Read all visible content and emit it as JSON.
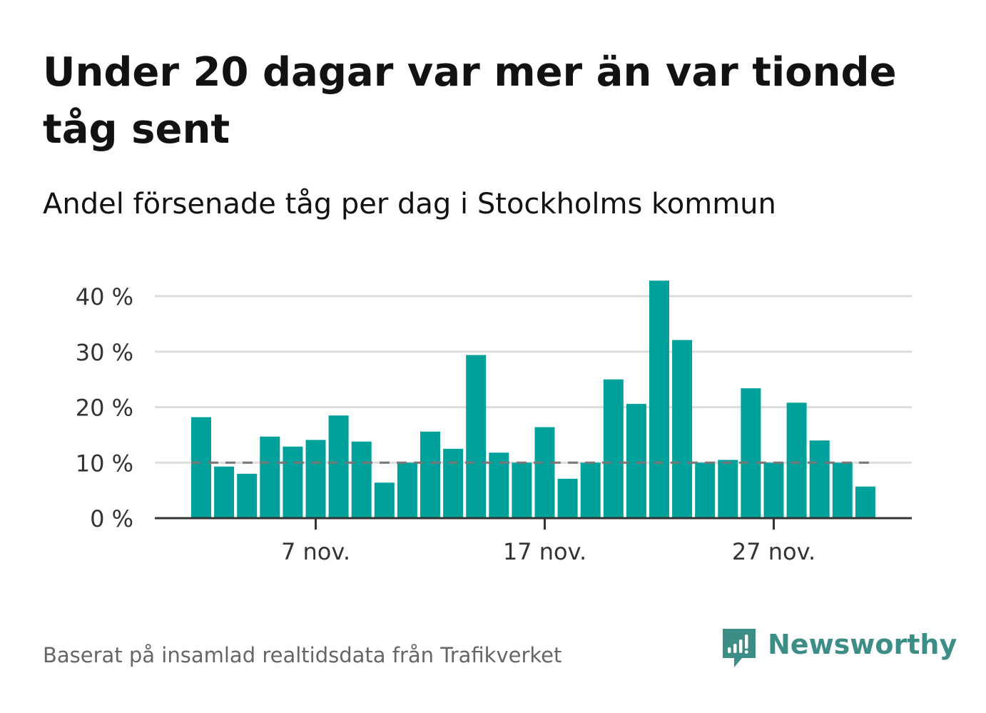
{
  "title": "Under 20 dagar var mer än var tionde tåg sent",
  "subtitle": "Andel försenade tåg per dag i Stockholms kommun",
  "source": "Baserat på insamlad realtidsdata från Trafikverket",
  "brand": {
    "name": "Newsworthy",
    "icon": "newsworthy-logo-icon",
    "color": "#3d8d87"
  },
  "colors": {
    "bar": "#00a19a",
    "gridline": "#dddddd",
    "reference_line": "#777777",
    "axis": "#333333"
  },
  "chart_data": {
    "type": "bar",
    "x_unit": "day",
    "x": [
      "2023-11-02",
      "2023-11-03",
      "2023-11-04",
      "2023-11-05",
      "2023-11-06",
      "2023-11-07",
      "2023-11-08",
      "2023-11-09",
      "2023-11-10",
      "2023-11-11",
      "2023-11-12",
      "2023-11-13",
      "2023-11-14",
      "2023-11-15",
      "2023-11-16",
      "2023-11-17",
      "2023-11-18",
      "2023-11-19",
      "2023-11-20",
      "2023-11-21",
      "2023-11-22",
      "2023-11-23",
      "2023-11-24",
      "2023-11-25",
      "2023-11-26",
      "2023-11-27",
      "2023-11-28",
      "2023-11-29",
      "2023-11-30",
      "2023-12-01"
    ],
    "values": [
      18.2,
      9.3,
      8.0,
      14.7,
      12.9,
      14.1,
      18.5,
      13.8,
      6.4,
      10.0,
      15.6,
      12.5,
      29.4,
      11.8,
      10.0,
      16.4,
      7.1,
      10.0,
      25.0,
      20.6,
      42.8,
      32.1,
      10.0,
      10.5,
      23.4,
      10.0,
      20.8,
      14.0,
      10.0,
      5.7
    ],
    "reference_line": {
      "value": 10,
      "style": "dashed"
    },
    "x_ticks": [
      {
        "x": "2023-11-07",
        "label": "7 nov."
      },
      {
        "x": "2023-11-17",
        "label": "17 nov."
      },
      {
        "x": "2023-11-27",
        "label": "27 nov."
      }
    ],
    "y_ticks": [
      {
        "value": 0,
        "label": "0 %"
      },
      {
        "value": 10,
        "label": "10 %"
      },
      {
        "value": 20,
        "label": "20 %"
      },
      {
        "value": 30,
        "label": "30 %"
      },
      {
        "value": 40,
        "label": "40 %"
      }
    ],
    "ylim": [
      0,
      43
    ],
    "grid": true,
    "legend": "none"
  }
}
